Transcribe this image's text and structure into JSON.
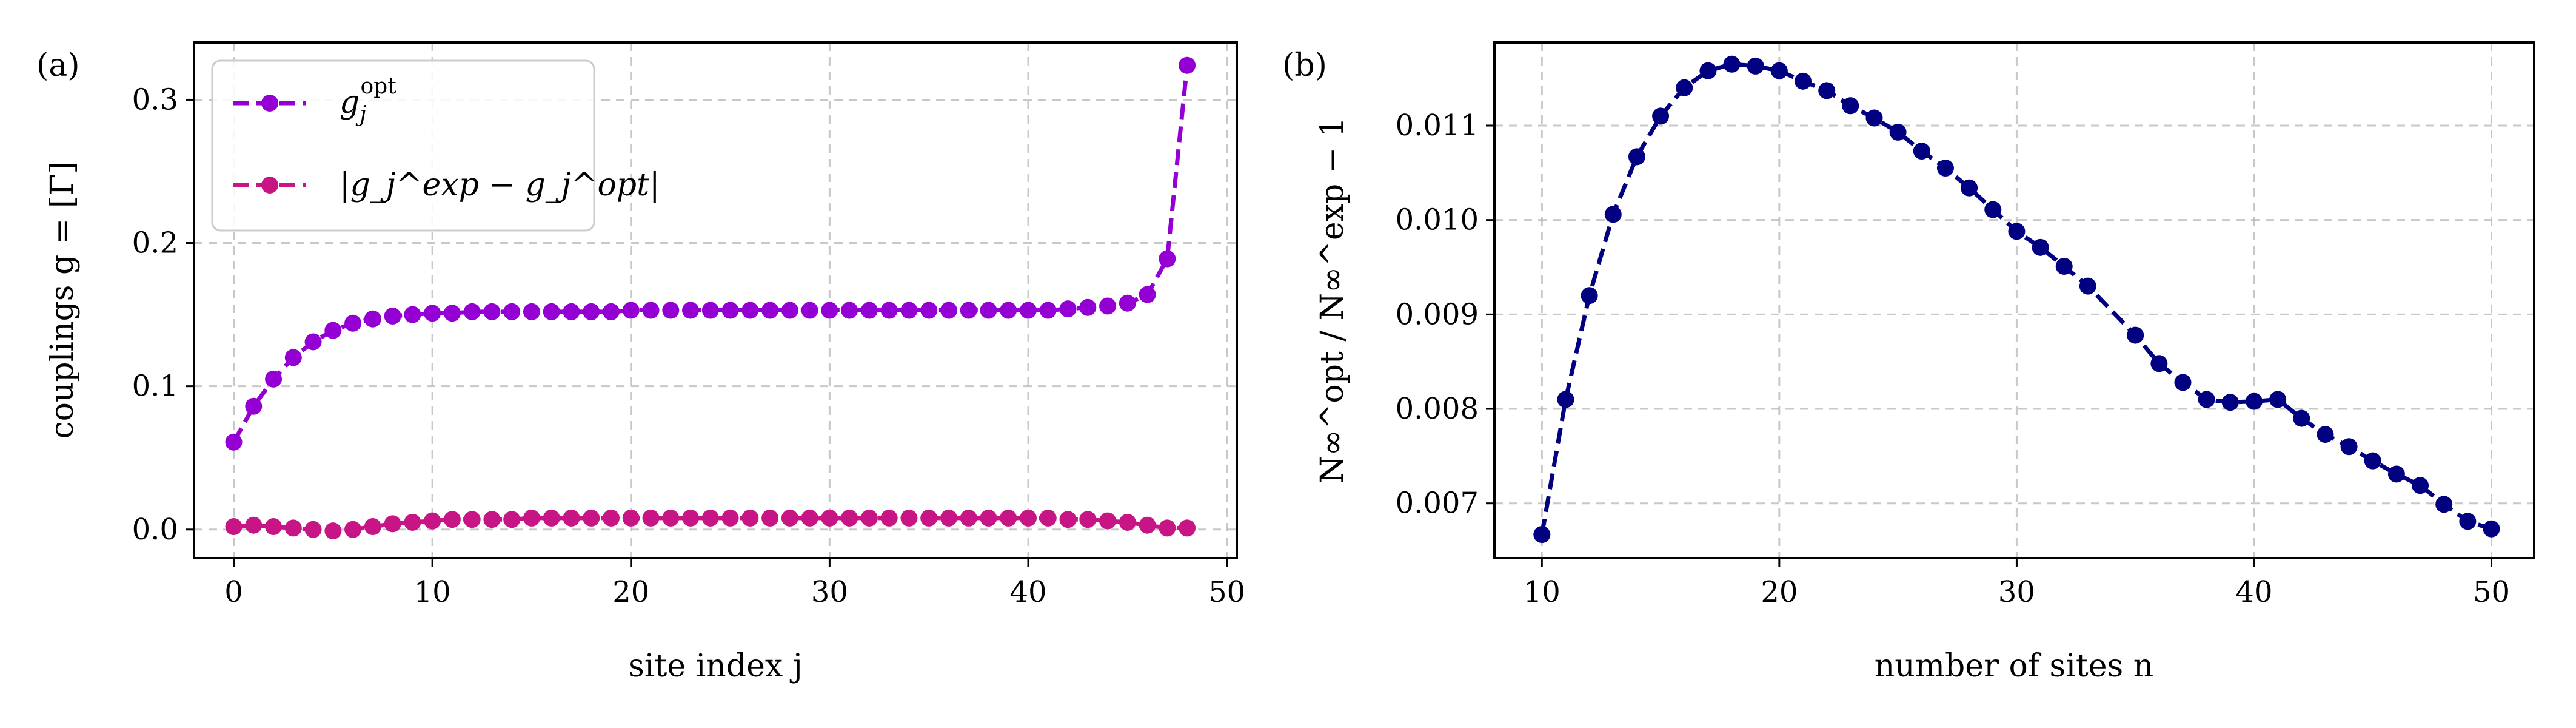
{
  "panels": {
    "a": {
      "label": "(a)"
    },
    "b": {
      "label": "(b)"
    }
  },
  "chart_data": [
    {
      "type": "line",
      "panel": "(a)",
      "xlabel": "site index j",
      "ylabel": "couplings g = [Γ]",
      "xlim": [
        -2,
        50.5
      ],
      "ylim": [
        -0.02,
        0.34
      ],
      "xticks": [
        0,
        10,
        20,
        30,
        40,
        50
      ],
      "yticks": [
        0.0,
        0.1,
        0.2,
        0.3
      ],
      "xtick_labels": [
        "0",
        "10",
        "20",
        "30",
        "40",
        "50"
      ],
      "ytick_labels": [
        "0.0",
        "0.1",
        "0.2",
        "0.3"
      ],
      "grid": true,
      "legend_position": "top-left",
      "series": [
        {
          "name": "g_j^opt",
          "legend_main": "g",
          "legend_sub": "j",
          "legend_sup": "opt",
          "color": "#9400d3",
          "line_style": "dashed",
          "marker": "circle",
          "x": [
            0,
            1,
            2,
            3,
            4,
            5,
            6,
            7,
            8,
            9,
            10,
            11,
            12,
            13,
            14,
            15,
            16,
            17,
            18,
            19,
            20,
            21,
            22,
            23,
            24,
            25,
            26,
            27,
            28,
            29,
            30,
            31,
            32,
            33,
            34,
            35,
            36,
            37,
            38,
            39,
            40,
            41,
            42,
            43,
            44,
            45,
            46,
            47,
            48
          ],
          "values": [
            0.061,
            0.086,
            0.105,
            0.12,
            0.131,
            0.139,
            0.144,
            0.147,
            0.149,
            0.15,
            0.151,
            0.151,
            0.152,
            0.152,
            0.152,
            0.152,
            0.152,
            0.152,
            0.152,
            0.152,
            0.153,
            0.153,
            0.153,
            0.153,
            0.153,
            0.153,
            0.153,
            0.153,
            0.153,
            0.153,
            0.153,
            0.153,
            0.153,
            0.153,
            0.153,
            0.153,
            0.153,
            0.153,
            0.153,
            0.153,
            0.153,
            0.153,
            0.154,
            0.155,
            0.156,
            0.158,
            0.164,
            0.189,
            0.324
          ]
        },
        {
          "name": "|g_j^exp − g_j^opt|",
          "color": "#c71585",
          "line_style": "dashed",
          "marker": "circle",
          "x": [
            0,
            1,
            2,
            3,
            4,
            5,
            6,
            7,
            8,
            9,
            10,
            11,
            12,
            13,
            14,
            15,
            16,
            17,
            18,
            19,
            20,
            21,
            22,
            23,
            24,
            25,
            26,
            27,
            28,
            29,
            30,
            31,
            32,
            33,
            34,
            35,
            36,
            37,
            38,
            39,
            40,
            41,
            42,
            43,
            44,
            45,
            46,
            47,
            48
          ],
          "values": [
            0.002,
            0.003,
            0.002,
            0.001,
            0.0,
            -0.001,
            0.0,
            0.002,
            0.004,
            0.005,
            0.006,
            0.007,
            0.007,
            0.007,
            0.007,
            0.008,
            0.008,
            0.008,
            0.008,
            0.008,
            0.008,
            0.008,
            0.008,
            0.008,
            0.008,
            0.008,
            0.008,
            0.008,
            0.008,
            0.008,
            0.008,
            0.008,
            0.008,
            0.008,
            0.008,
            0.008,
            0.008,
            0.008,
            0.008,
            0.008,
            0.008,
            0.008,
            0.007,
            0.007,
            0.006,
            0.005,
            0.003,
            0.001,
            0.001
          ]
        }
      ]
    },
    {
      "type": "line",
      "panel": "(b)",
      "xlabel": "number of sites n",
      "ylabel": "N∞^opt / N∞^exp − 1",
      "xlim": [
        8,
        51.8
      ],
      "ylim": [
        0.00642,
        0.01188
      ],
      "xticks": [
        10,
        20,
        30,
        40,
        50
      ],
      "yticks": [
        0.007,
        0.008,
        0.009,
        0.01,
        0.011
      ],
      "xtick_labels": [
        "10",
        "20",
        "30",
        "40",
        "50"
      ],
      "ytick_labels": [
        "0.007",
        "0.008",
        "0.009",
        "0.010",
        "0.011"
      ],
      "grid": true,
      "series": [
        {
          "color": "#000080",
          "line_style": "dashed",
          "marker": "circle",
          "x": [
            10,
            11,
            12,
            13,
            14,
            15,
            16,
            17,
            18,
            19,
            20,
            21,
            22,
            23,
            24,
            25,
            26,
            27,
            28,
            29,
            30,
            31,
            32,
            33,
            35,
            36,
            37,
            38,
            39,
            40,
            41,
            42,
            43,
            44,
            45,
            46,
            47,
            48,
            49,
            50
          ],
          "values": [
            0.00667,
            0.0081,
            0.0092,
            0.01006,
            0.01067,
            0.0111,
            0.0114,
            0.01158,
            0.01165,
            0.01163,
            0.01158,
            0.01147,
            0.01137,
            0.01121,
            0.01108,
            0.01093,
            0.01073,
            0.01055,
            0.01034,
            0.01011,
            0.00988,
            0.00971,
            0.00951,
            0.0093,
            0.00878,
            0.00848,
            0.00828,
            0.0081,
            0.00807,
            0.00808,
            0.0081,
            0.0079,
            0.00773,
            0.0076,
            0.00745,
            0.00731,
            0.00719,
            0.00699,
            0.00681,
            0.00673
          ]
        }
      ]
    }
  ]
}
